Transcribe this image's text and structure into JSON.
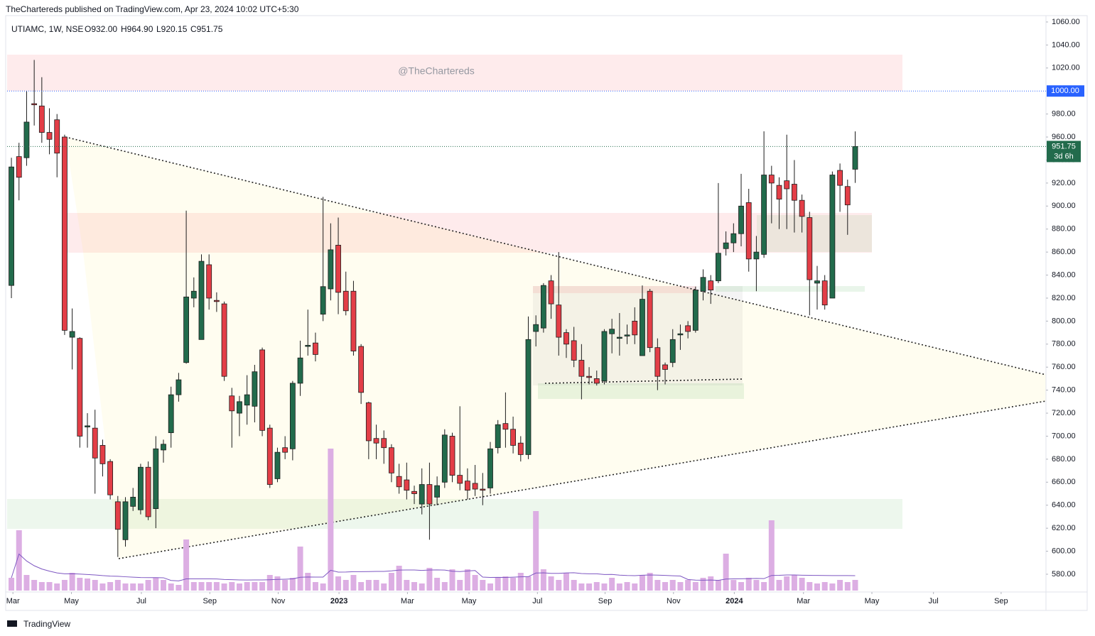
{
  "header": "TheChartereds published on TradingView.com, Apr 23, 2024 10:02 UTC+5:30",
  "footer": "TradingView",
  "chart_data": {
    "type": "candlestick",
    "symbol": "UTIAMC, 1W, NSE",
    "ohlc_labels": [
      "O932.00",
      "H964.90",
      "L920.15",
      "C951.75"
    ],
    "watermark": "@TheChartereds",
    "up_color": "#226b4c",
    "down_color": "#e33e47",
    "volume_color": "#dcaee3",
    "volume_ma_color": "#7e57c2",
    "price_line": {
      "value": 1000,
      "label": "1000.00"
    },
    "last_price_label": "951.75",
    "countdown": "3d 6h",
    "xlim": [
      -1.5,
      136.1
    ],
    "xticks": [
      {
        "value": 0.2,
        "label": "Mar"
      },
      {
        "value": 7.9,
        "label": "May"
      },
      {
        "value": 17.1,
        "label": "Jul"
      },
      {
        "value": 26.1,
        "label": "Sep"
      },
      {
        "value": 35.1,
        "label": "Nov"
      },
      {
        "value": 43.1,
        "label": "2023"
      },
      {
        "value": 52.1,
        "label": "Mar"
      },
      {
        "value": 60.2,
        "label": "May"
      },
      {
        "value": 69.2,
        "label": "Jul"
      },
      {
        "value": 78.1,
        "label": "Sep"
      },
      {
        "value": 87.1,
        "label": "Nov"
      },
      {
        "value": 95.1,
        "label": "2024"
      },
      {
        "value": 104.2,
        "label": "Mar"
      },
      {
        "value": 113.2,
        "label": "May"
      },
      {
        "value": 121.3,
        "label": "Jul"
      },
      {
        "value": 130.2,
        "label": "Sep"
      }
    ],
    "ylim": [
      565.8,
      1079.1
    ],
    "yticks": [
      {
        "value": 580,
        "label": "580.00"
      },
      {
        "value": 600,
        "label": "600.00"
      },
      {
        "value": 620,
        "label": "620.00"
      },
      {
        "value": 640,
        "label": "640.00"
      },
      {
        "value": 660,
        "label": "660.00"
      },
      {
        "value": 680,
        "label": "680.00"
      },
      {
        "value": 700,
        "label": "700.00"
      },
      {
        "value": 720,
        "label": "720.00"
      },
      {
        "value": 740,
        "label": "740.00"
      },
      {
        "value": 760,
        "label": "760.00"
      },
      {
        "value": 780,
        "label": "780.00"
      },
      {
        "value": 800,
        "label": "800.00"
      },
      {
        "value": 820,
        "label": "820.00"
      },
      {
        "value": 840,
        "label": "840.00"
      },
      {
        "value": 860,
        "label": "860.00"
      },
      {
        "value": 880,
        "label": "880.00"
      },
      {
        "value": 900,
        "label": "900.00"
      },
      {
        "value": 920,
        "label": "920.00"
      },
      {
        "value": 940,
        "label": "940.00"
      },
      {
        "value": 960,
        "label": "960.00"
      },
      {
        "value": 980,
        "label": "980.00"
      },
      {
        "value": 1020,
        "label": "1020.00"
      },
      {
        "value": 1040,
        "label": "1040.00"
      },
      {
        "value": 1060,
        "label": "1060.00"
      }
    ],
    "open": [
      831,
      943,
      942,
      989,
      987,
      964,
      975,
      960,
      786,
      785,
      708,
      707,
      692,
      678,
      643,
      610,
      639,
      636,
      673,
      637,
      688,
      703,
      736,
      764,
      820,
      784,
      849,
      818,
      815,
      735,
      720,
      727,
      726,
      775,
      707,
      663,
      690,
      689,
      746,
      778,
      781,
      806,
      828,
      866,
      826,
      826,
      778,
      729,
      698,
      698,
      690,
      665,
      662,
      652,
      641,
      658,
      647,
      660,
      700,
      666,
      661,
      659,
      654,
      655,
      690,
      711,
      706,
      694,
      684,
      791,
      794,
      835,
      814,
      790,
      783,
      766,
      752,
      750,
      748,
      789,
      785,
      787,
      800,
      770,
      826,
      777,
      762,
      764,
      788,
      796,
      792,
      826,
      835,
      835,
      863,
      868,
      876,
      903,
      854,
      858,
      927,
      918,
      922,
      919,
      905,
      890,
      833,
      835,
      820,
      931,
      917,
      932
    ],
    "high": [
      942,
      955,
      1000,
      1027,
      1012,
      985,
      980,
      962,
      811,
      786,
      720,
      723,
      697,
      680,
      648,
      647,
      655,
      676,
      678,
      700,
      697,
      743,
      755,
      896,
      838,
      858,
      858,
      825,
      817,
      742,
      735,
      753,
      762,
      777,
      710,
      690,
      700,
      748,
      783,
      810,
      790,
      908,
      885,
      890,
      843,
      835,
      780,
      730,
      710,
      705,
      693,
      676,
      677,
      657,
      672,
      677,
      665,
      706,
      703,
      726,
      672,
      675,
      668,
      695,
      714,
      738,
      717,
      700,
      804,
      805,
      833,
      840,
      860,
      793,
      795,
      780,
      760,
      757,
      793,
      802,
      807,
      797,
      812,
      831,
      828,
      785,
      764,
      793,
      797,
      800,
      830,
      845,
      840,
      920,
      878,
      885,
      928,
      915,
      874,
      965,
      935,
      925,
      962,
      940,
      910,
      895,
      848,
      840,
      930,
      937,
      923,
      964.9
    ],
    "low": [
      820,
      905,
      935,
      970,
      955,
      945,
      925,
      788,
      758,
      690,
      690,
      650,
      665,
      645,
      595,
      604,
      635,
      632,
      627,
      620,
      677,
      690,
      730,
      763,
      812,
      784,
      810,
      808,
      748,
      690,
      700,
      710,
      712,
      700,
      655,
      660,
      680,
      679,
      735,
      770,
      765,
      800,
      818,
      806,
      805,
      770,
      728,
      680,
      680,
      676,
      660,
      650,
      645,
      641,
      632,
      610,
      640,
      655,
      660,
      653,
      645,
      648,
      640,
      650,
      685,
      690,
      685,
      678,
      680,
      778,
      790,
      802,
      770,
      768,
      760,
      732,
      745,
      744,
      745,
      772,
      770,
      780,
      780,
      770,
      773,
      740,
      745,
      760,
      775,
      785,
      790,
      818,
      815,
      833,
      857,
      860,
      865,
      843,
      826,
      855,
      885,
      880,
      880,
      877,
      877,
      805,
      810,
      810,
      820,
      895,
      875,
      920.15
    ],
    "close": [
      934,
      925,
      973,
      988,
      964,
      958,
      946,
      792,
      791,
      700,
      709,
      681,
      676,
      649,
      619,
      643,
      647,
      673,
      630,
      689,
      693,
      736,
      749,
      821,
      826,
      852,
      820,
      817,
      752,
      722,
      730,
      736,
      756,
      705,
      658,
      686,
      686,
      746,
      768,
      779,
      771,
      830,
      862,
      825,
      809,
      774,
      738,
      696,
      694,
      690,
      668,
      656,
      653,
      650,
      658,
      641,
      657,
      701,
      666,
      659,
      653,
      654,
      653,
      689,
      710,
      706,
      692,
      684,
      784,
      797,
      831,
      815,
      786,
      780,
      766,
      752,
      751,
      746,
      791,
      793,
      786,
      788,
      788,
      819,
      777,
      752,
      758,
      784,
      789,
      791,
      827,
      838,
      827,
      859,
      868,
      876,
      900,
      854,
      860,
      927,
      920,
      906,
      915,
      905,
      891,
      836,
      835,
      814,
      927,
      918,
      901,
      951.75
    ],
    "volume": [
      18,
      85,
      22,
      15,
      12,
      12,
      10,
      15,
      25,
      18,
      17,
      15,
      10,
      12,
      15,
      10,
      10,
      10,
      15,
      18,
      15,
      10,
      8,
      72,
      12,
      12,
      12,
      12,
      10,
      12,
      10,
      12,
      12,
      12,
      22,
      20,
      15,
      18,
      62,
      25,
      12,
      10,
      200,
      20,
      15,
      22,
      12,
      15,
      15,
      10,
      25,
      35,
      15,
      12,
      10,
      32,
      18,
      12,
      30,
      15,
      30,
      22,
      15,
      10,
      18,
      20,
      18,
      25,
      20,
      112,
      30,
      20,
      15,
      25,
      15,
      10,
      10,
      12,
      10,
      18,
      10,
      12,
      10,
      22,
      25,
      15,
      12,
      15,
      12,
      15,
      12,
      18,
      20,
      15,
      52,
      15,
      12,
      18,
      15,
      12,
      99,
      15,
      20,
      22,
      18,
      12,
      10,
      12,
      10,
      15,
      12,
      15
    ]
  }
}
